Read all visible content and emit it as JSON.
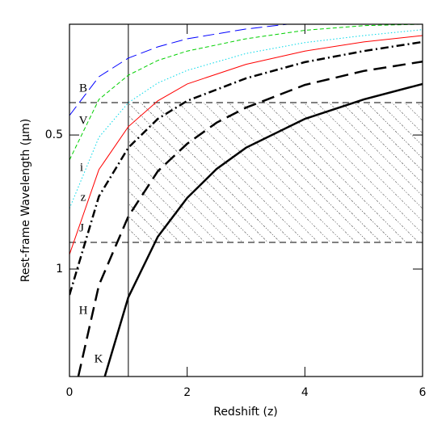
{
  "chart_data": {
    "type": "line",
    "x_label": "Redshift (z)",
    "y_label": "Rest-frame Wavelength (μm)",
    "xlim": [
      0,
      6
    ],
    "xticks": [
      0,
      2,
      4,
      6
    ],
    "ylim": [
      0.282,
      1.743
    ],
    "yticks": [
      0.5,
      1
    ],
    "log_y": true,
    "y_reversed": true,
    "vlines": [
      1
    ],
    "hlines": [
      0.423,
      0.871
    ],
    "shaded_region": {
      "xlim": [
        1,
        6
      ],
      "ylim": [
        0.423,
        0.871
      ]
    },
    "series": [
      {
        "name": "B",
        "color": "#0000ff",
        "x": [
          0,
          0.5,
          1,
          1.5,
          2,
          3,
          3.7
        ],
        "values": [
          0.452,
          0.37,
          0.336,
          0.317,
          0.304,
          0.289,
          0.282
        ]
      },
      {
        "name": "V",
        "color": "#00d000",
        "x": [
          0,
          0.5,
          1,
          1.5,
          2,
          3,
          4,
          5,
          6
        ],
        "values": [
          0.569,
          0.416,
          0.367,
          0.34,
          0.324,
          0.304,
          0.291,
          0.284,
          0.282
        ]
      },
      {
        "name": "i",
        "color": "#00d8e8",
        "x": [
          0,
          0.5,
          1,
          1.5,
          2,
          3,
          4,
          5,
          6
        ],
        "values": [
          0.731,
          0.506,
          0.423,
          0.382,
          0.358,
          0.328,
          0.31,
          0.299,
          0.29
        ]
      },
      {
        "name": "z",
        "color": "#ff0000",
        "x": [
          0,
          0.5,
          1,
          1.5,
          2,
          3,
          4,
          5,
          6
        ],
        "values": [
          0.927,
          0.598,
          0.479,
          0.419,
          0.384,
          0.347,
          0.324,
          0.309,
          0.299
        ]
      },
      {
        "name": "J",
        "color": "#000000",
        "x": [
          0,
          0.5,
          1,
          1.5,
          2,
          3,
          4,
          5,
          6
        ],
        "values": [
          1.143,
          0.687,
          0.534,
          0.46,
          0.419,
          0.373,
          0.343,
          0.324,
          0.309
        ]
      },
      {
        "name": "H",
        "color": "#000000",
        "x": [
          0.15,
          0.5,
          1,
          1.5,
          2,
          2.5,
          3,
          4,
          5,
          6
        ],
        "values": [
          1.743,
          1.087,
          0.762,
          0.603,
          0.523,
          0.469,
          0.434,
          0.386,
          0.359,
          0.342
        ]
      },
      {
        "name": "K",
        "color": "#000000",
        "x": [
          0.6,
          1,
          1.5,
          2,
          2.5,
          3,
          4,
          5,
          6
        ],
        "values": [
          1.743,
          1.157,
          0.846,
          0.692,
          0.596,
          0.534,
          0.46,
          0.416,
          0.384
        ]
      }
    ]
  }
}
